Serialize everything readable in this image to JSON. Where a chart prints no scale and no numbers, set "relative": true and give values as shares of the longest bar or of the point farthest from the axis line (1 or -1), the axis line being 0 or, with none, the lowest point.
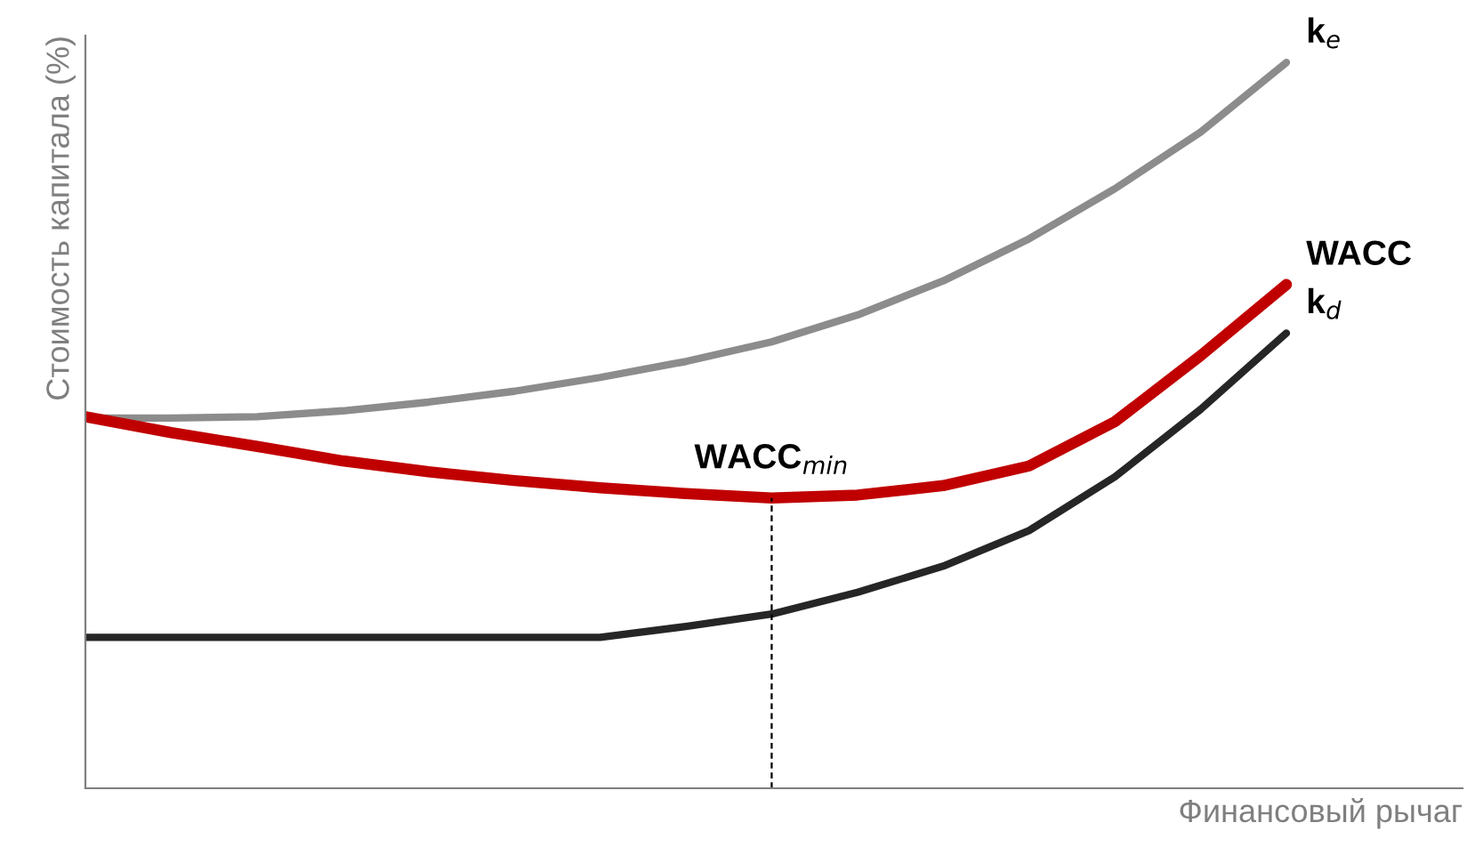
{
  "chart_data": {
    "type": "line",
    "relative": true,
    "xlabel": "Финансовый рычаг",
    "ylabel": "Стоимость капитала (%)",
    "categories": [
      null,
      null,
      null,
      null,
      null,
      null,
      null,
      null,
      null,
      null,
      null,
      null,
      null,
      null,
      null
    ],
    "series": [
      {
        "name": "k$_{e}$",
        "color": "#8c8c8c",
        "values": [
          0.51,
          0.51,
          0.512,
          0.52,
          0.532,
          0.547,
          0.566,
          0.588,
          0.615,
          0.652,
          0.699,
          0.757,
          0.826,
          0.904,
          1
        ]
      },
      {
        "name": "WACC",
        "color": "#c00000",
        "values": [
          0.512,
          0.49,
          0.471,
          0.451,
          0.436,
          0.424,
          0.414,
          0.406,
          0.4,
          0.404,
          0.417,
          0.444,
          0.505,
          0.596,
          0.694
        ]
      },
      {
        "name": "k$_{d}$",
        "color": "#262626",
        "values": [
          0.208,
          0.208,
          0.208,
          0.208,
          0.208,
          0.208,
          0.208,
          0.223,
          0.24,
          0.27,
          0.306,
          0.355,
          0.429,
          0.522,
          0.627
        ]
      }
    ],
    "annotations": [
      "WACC$_{min}$"
    ],
    "legend": false,
    "grid": false,
    "tick_labels": false
  }
}
